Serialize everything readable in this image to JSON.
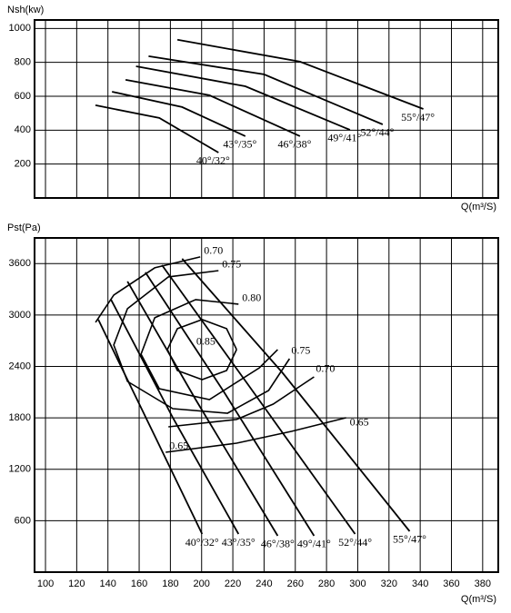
{
  "chart_data": [
    {
      "type": "line",
      "y_label": "Nsh(kw)",
      "x_label": "Q(m³/S)",
      "xlim": [
        93,
        390
      ],
      "xticks": [
        100,
        120,
        140,
        160,
        180,
        200,
        220,
        240,
        260,
        280,
        300,
        320,
        340,
        360,
        380
      ],
      "ylim": [
        0,
        1050
      ],
      "yticks": [
        200,
        400,
        600,
        800,
        1000
      ],
      "grid": true,
      "series": [
        {
          "name": "40°/32°",
          "color": "#000000",
          "x": [
            132,
            172.9,
            210.8
          ],
          "values": [
            547,
            472,
            268
          ]
        },
        {
          "name": "43°/35°",
          "color": "#000000",
          "x": [
            142.6,
            187.5,
            228
          ],
          "values": [
            627,
            536,
            365
          ]
        },
        {
          "name": "46°/38°",
          "color": "#000000",
          "x": [
            151.3,
            205,
            263
          ],
          "values": [
            697,
            606,
            365
          ]
        },
        {
          "name": "49°/41°",
          "color": "#000000",
          "x": [
            158,
            228,
            295
          ],
          "values": [
            777,
            659,
            402
          ]
        },
        {
          "name": "52°/44°",
          "color": "#000000",
          "x": [
            166,
            240,
            316
          ],
          "values": [
            836,
            729,
            434
          ]
        },
        {
          "name": "55°/47°",
          "color": "#000000",
          "x": [
            184.5,
            263,
            342
          ],
          "values": [
            933,
            804,
            525
          ]
        }
      ]
    },
    {
      "type": "line",
      "y_label": "Pst(Pa)",
      "x_label": "Q(m³/S)",
      "xlim": [
        93,
        390
      ],
      "xticks": [
        100,
        120,
        140,
        160,
        180,
        200,
        220,
        240,
        260,
        280,
        300,
        320,
        340,
        360,
        380
      ],
      "ylim": [
        0,
        3900
      ],
      "yticks": [
        600,
        1200,
        1800,
        2400,
        3000,
        3600
      ],
      "grid": true,
      "series": [
        {
          "name": "40°/32°",
          "color": "#000000",
          "x": [
            133.8,
            170,
            200.3
          ],
          "values": [
            2947,
            1590,
            445
          ]
        },
        {
          "name": "43°/35°",
          "color": "#000000",
          "x": [
            142,
            181.6,
            223.6
          ],
          "values": [
            3180,
            1802,
            445
          ]
        },
        {
          "name": "46°/38°",
          "color": "#000000",
          "x": [
            152.5,
            196.2,
            248.7
          ],
          "values": [
            3392,
            2014,
            424
          ]
        },
        {
          "name": "49°/41°",
          "color": "#000000",
          "x": [
            164,
            213.7,
            272
          ],
          "values": [
            3498,
            2120,
            424
          ]
        },
        {
          "name": "52°/44°",
          "color": "#000000",
          "x": [
            174.6,
            228.3,
            298.3
          ],
          "values": [
            3583,
            2226,
            445
          ]
        },
        {
          "name": "55°/47°",
          "color": "#000000",
          "x": [
            187.5,
            251.6,
            333.2
          ],
          "values": [
            3657,
            2332,
            477
          ]
        }
      ],
      "efficiency": [
        {
          "name": "0.85",
          "color": "#000000",
          "x": [
            222.4,
            216,
            200.3,
            184.5,
            178.1,
            184.5,
            200.3,
            216,
            222.4
          ],
          "values": [
            2597,
            2841,
            2947,
            2841,
            2597,
            2353,
            2247,
            2353,
            2597
          ]
        },
        {
          "name": "0.80",
          "color": "#000000",
          "x": [
            223.6,
            196.2,
            170,
            161.2,
            172.9,
            205,
            237,
            248.7
          ],
          "values": [
            3127,
            3180,
            2968,
            2544,
            2141,
            2014,
            2385,
            2597
          ]
        },
        {
          "name": "0.75",
          "color": "#000000",
          "x": [
            210.8,
            178.7,
            152.5,
            143.7,
            152.5,
            181.6,
            216.6,
            242.9,
            256.3
          ],
          "values": [
            3519,
            3445,
            3074,
            2650,
            2226,
            1908,
            1855,
            2120,
            2491
          ]
        },
        {
          "name": "0.70",
          "color": "#000000",
          "x": [
            199.1,
            170,
            143.7,
            132.1,
            null,
            178.7,
            222.4,
            245.8,
            272
          ],
          "values": [
            3678,
            3551,
            3233,
            2915,
            null,
            1696,
            1781,
            1961,
            2279
          ]
        },
        {
          "name": "0.65",
          "color": "#000000",
          "x": [
            177,
            222.4,
            257.5,
            292.5
          ],
          "values": [
            1399,
            1505,
            1643,
            1802
          ]
        }
      ]
    }
  ]
}
